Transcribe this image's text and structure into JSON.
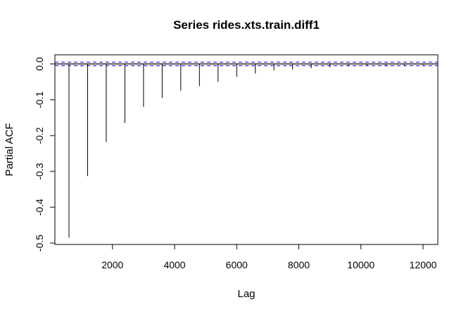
{
  "chart_data": {
    "type": "bar",
    "title": "Series  rides.xts.train.diff1",
    "xlabel": "Lag",
    "ylabel": "Partial ACF",
    "xlim": [
      600,
      12000
    ],
    "ylim": [
      -0.5,
      0.0
    ],
    "x_ticks": [
      2000,
      4000,
      6000,
      8000,
      10000,
      12000
    ],
    "y_ticks": [
      0.0,
      -0.1,
      -0.2,
      -0.3,
      -0.4,
      -0.5
    ],
    "x_tick_labels": [
      "2000",
      "4000",
      "6000",
      "8000",
      "10000",
      "12000"
    ],
    "y_tick_labels": [
      "0.0",
      "-0.1",
      "-0.2",
      "-0.3",
      "-0.4",
      "-0.5"
    ],
    "lags": [
      600,
      1200,
      1800,
      2400,
      3000,
      3600,
      4200,
      4800,
      5400,
      6000,
      6600,
      7200,
      7800,
      8400,
      9000,
      9600,
      10200,
      10800,
      11400,
      12000
    ],
    "values": [
      -0.485,
      -0.313,
      -0.218,
      -0.165,
      -0.12,
      -0.095,
      -0.075,
      -0.062,
      -0.05,
      -0.036,
      -0.027,
      -0.018,
      -0.016,
      -0.012,
      -0.009,
      -0.007,
      -0.006,
      -0.005,
      -0.004,
      -0.003
    ],
    "confidence_bound": 0.005,
    "colors": {
      "bars": "#000000",
      "confidence": "#2020ff",
      "zero_line": "#000000"
    },
    "grid": false
  }
}
